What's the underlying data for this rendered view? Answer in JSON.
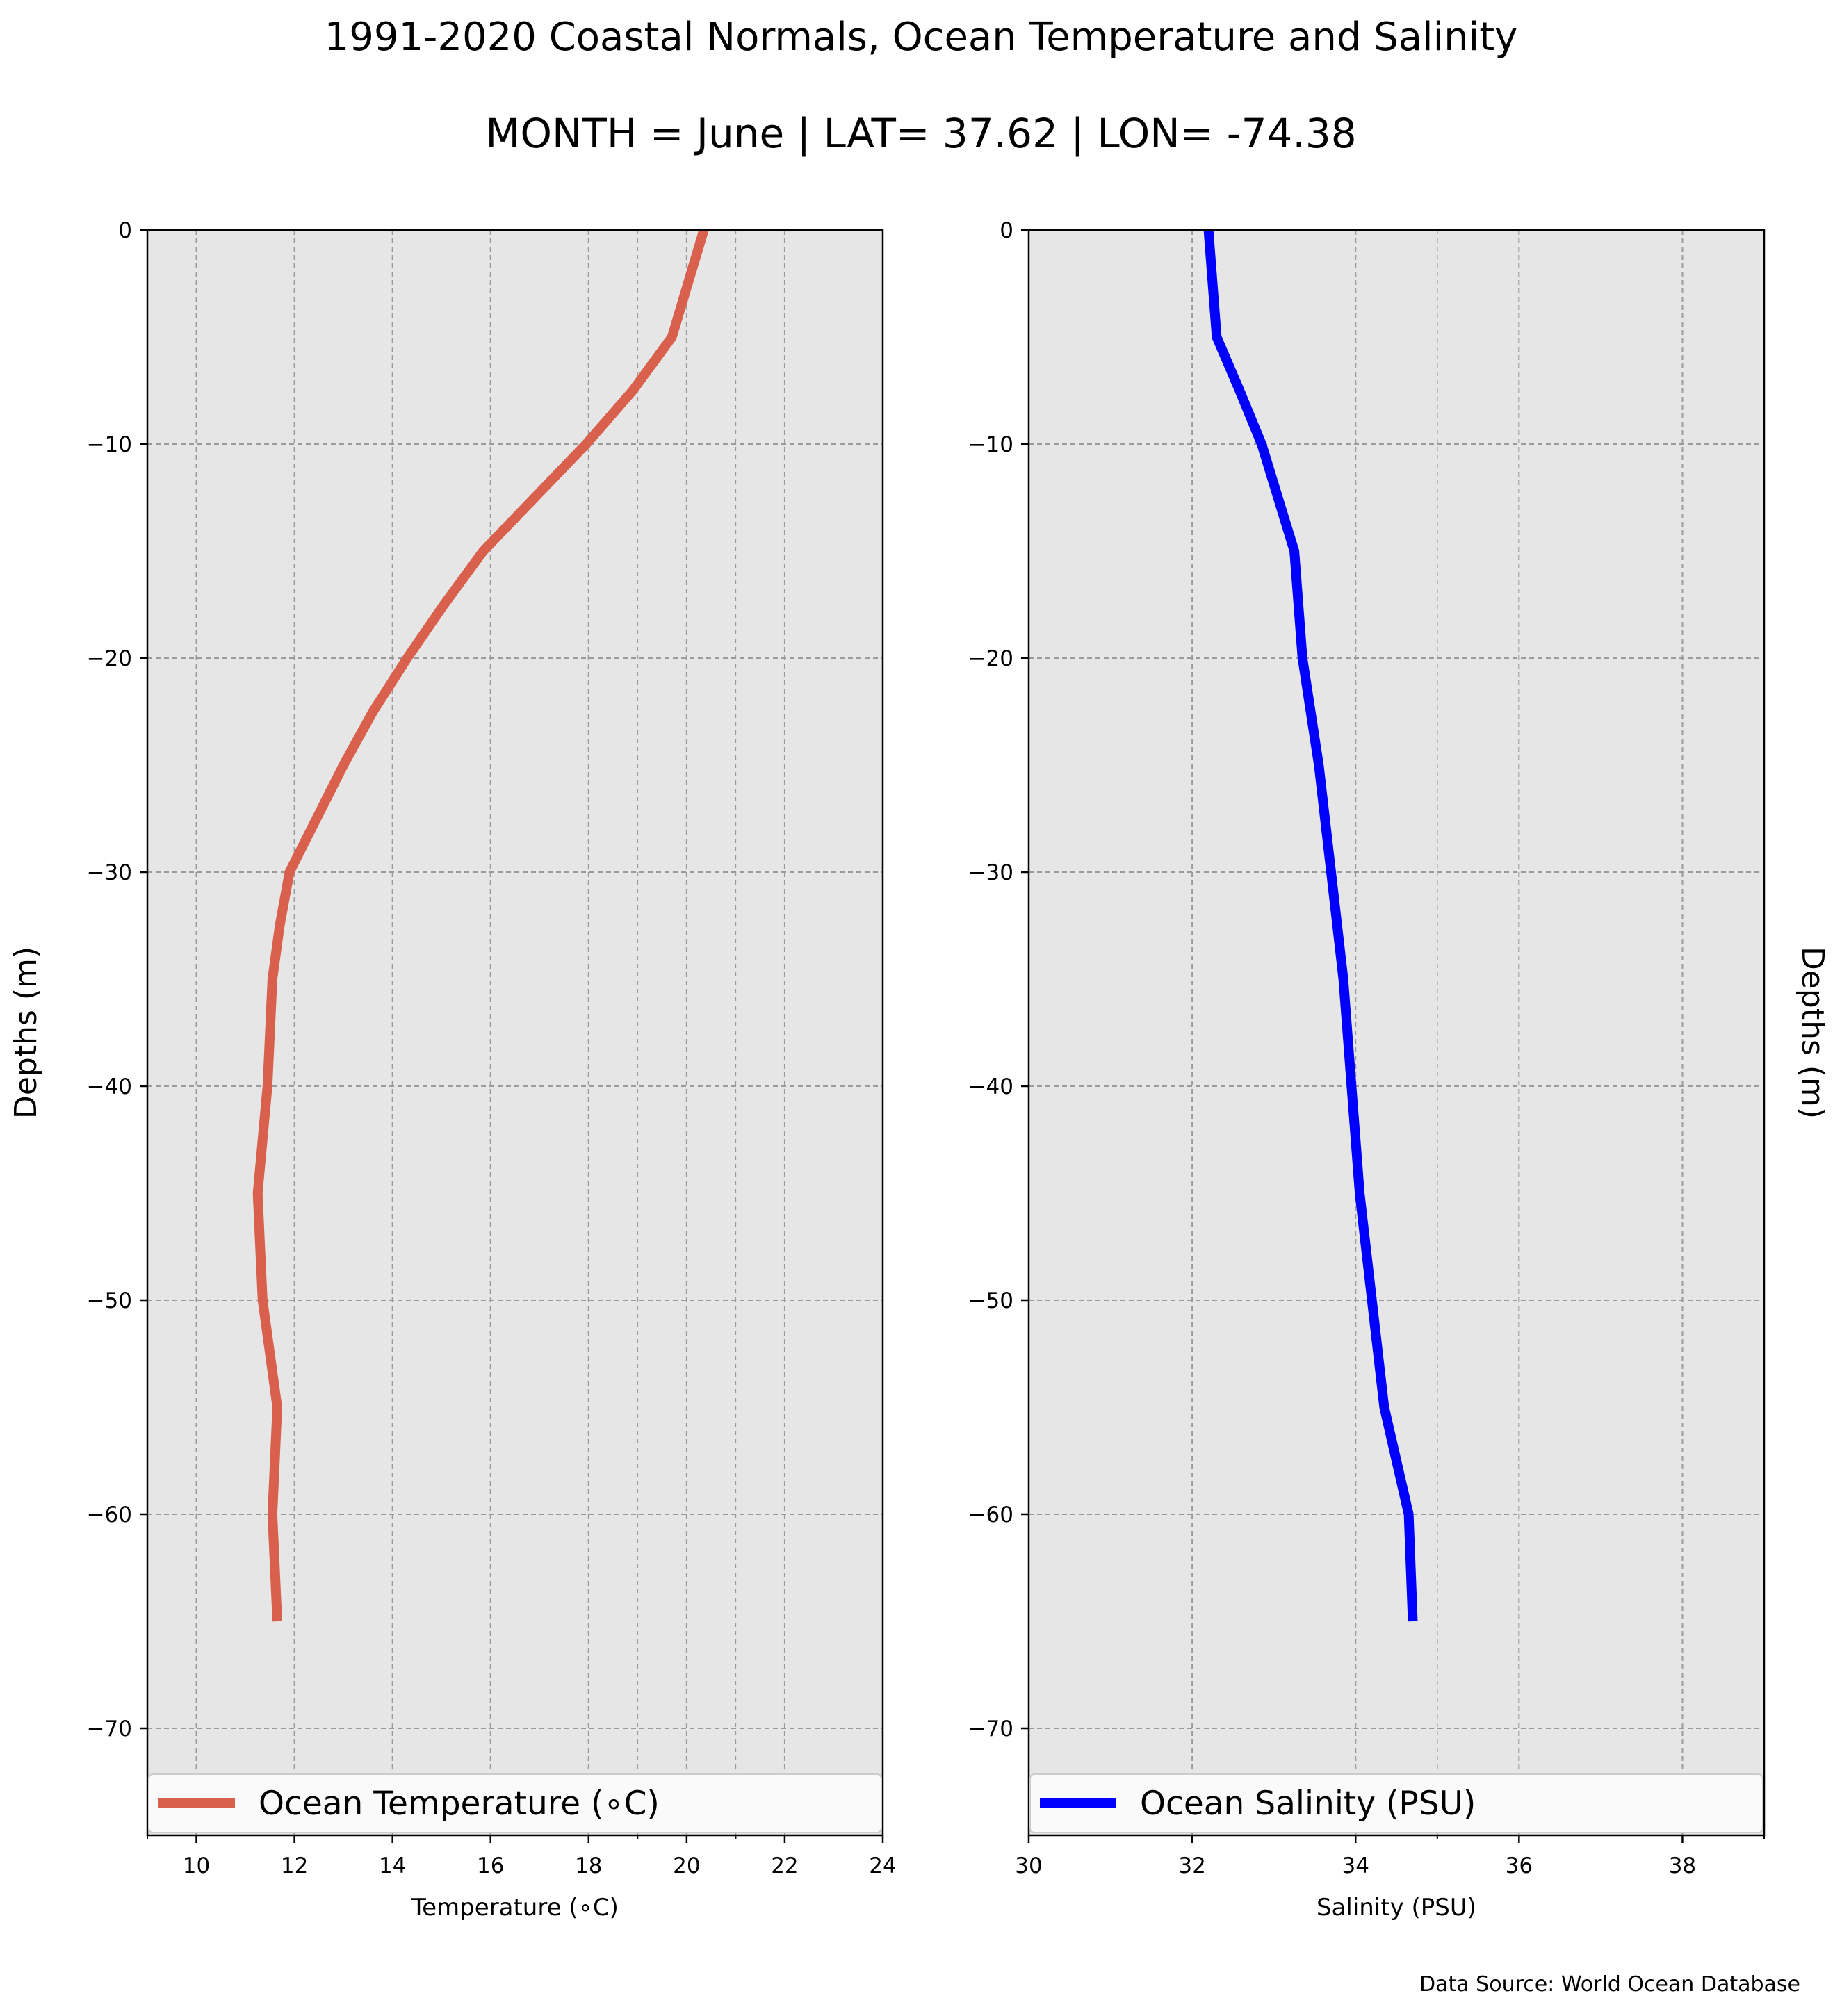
{
  "title_line1": "1991-2020 Coastal Normals, Ocean Temperature and Salinity",
  "title_line2": "MONTH = June | LAT= 37.62 | LON= -74.38",
  "source": "Data Source: World Ocean Database",
  "chart_data": [
    {
      "type": "line",
      "xlabel": "Temperature ($^\\circ$C)",
      "xlabel_display": "Temperature (∘C)",
      "ylabel": "Depths (m)",
      "xlim": [
        9,
        24
      ],
      "ylim": [
        -75,
        0
      ],
      "xticks": [
        10,
        12,
        14,
        16,
        18,
        20,
        22,
        24
      ],
      "yticks": [
        0,
        -10,
        -20,
        -30,
        -40,
        -50,
        -60,
        -70
      ],
      "ytick_labels": [
        "0",
        "−10",
        "−20",
        "−30",
        "−40",
        "−50",
        "−60",
        "−70"
      ],
      "grid": true,
      "legend_position": "bottom",
      "color": "#d9604c",
      "series": [
        {
          "name": "Ocean Temperature (∘C)",
          "x": [
            20.35,
            19.7,
            18.9,
            17.95,
            16.9,
            15.85,
            15.05,
            14.3,
            13.6,
            13.0,
            12.45,
            11.9,
            11.7,
            11.55,
            11.45,
            11.25,
            11.3,
            11.35,
            11.65,
            11.55,
            11.6,
            11.65
          ],
          "y": [
            0,
            -5,
            -7.5,
            -10,
            -12.5,
            -15,
            -17.5,
            -20,
            -22.5,
            -25,
            -27.5,
            -30,
            -32.5,
            -35,
            -40,
            -45,
            -47.5,
            -50,
            -55,
            -60,
            -62.5,
            -65
          ]
        }
      ]
    },
    {
      "type": "line",
      "xlabel": "Salinity (PSU)",
      "ylabel": "Depths (m)",
      "xlim": [
        30,
        39
      ],
      "ylim": [
        -75,
        0
      ],
      "xticks": [
        30,
        32,
        34,
        36,
        38
      ],
      "yticks": [
        0,
        -10,
        -20,
        -30,
        -40,
        -50,
        -60,
        -70
      ],
      "ytick_labels": [
        "0",
        "−10",
        "−20",
        "−30",
        "−40",
        "−50",
        "−60",
        "−70"
      ],
      "grid": true,
      "legend_position": "bottom",
      "color": "#0000ff",
      "series": [
        {
          "name": "Ocean Salinity (PSU)",
          "x": [
            32.2,
            32.3,
            32.58,
            32.85,
            33.05,
            33.25,
            33.35,
            33.55,
            33.7,
            33.85,
            34.05,
            34.2,
            34.35,
            34.65,
            34.7
          ],
          "y": [
            0,
            -5,
            -7.5,
            -10,
            -12.5,
            -15,
            -20,
            -25,
            -30,
            -35,
            -45,
            -50,
            -55,
            -60,
            -65
          ]
        }
      ]
    }
  ]
}
